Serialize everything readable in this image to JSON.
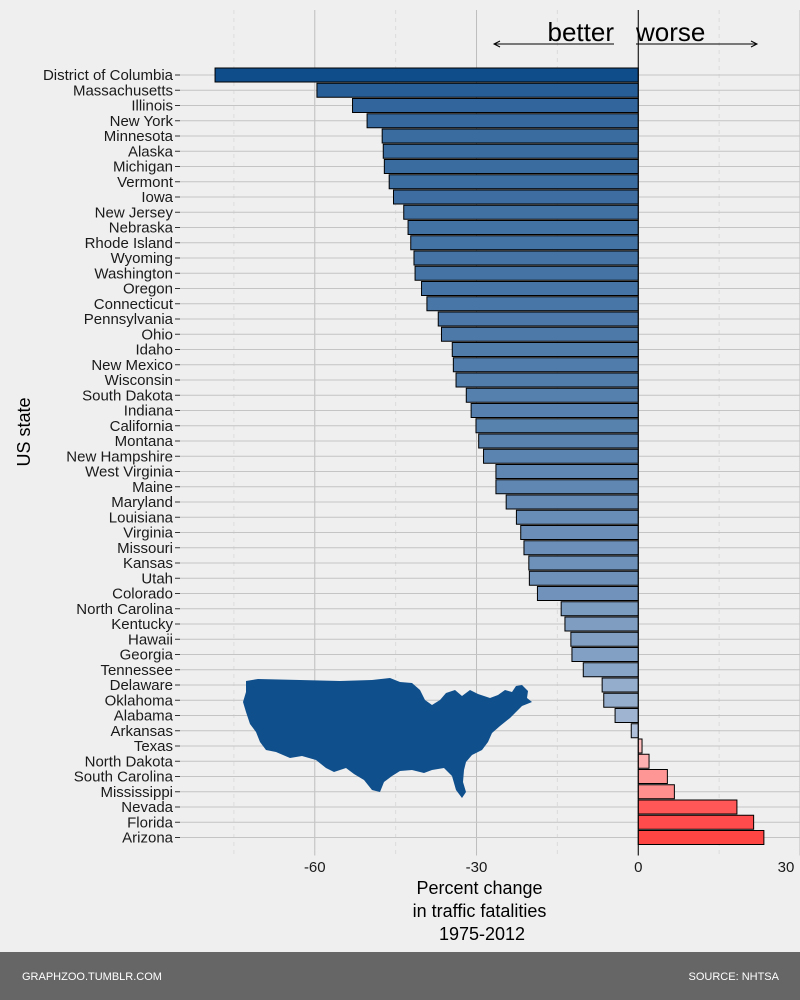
{
  "chart_data": {
    "type": "bar",
    "orientation": "horizontal",
    "ylabel": "US state",
    "xlabel_lines": [
      "Percent change",
      "in traffic fatalities",
      "1975-2012"
    ],
    "xlim": [
      -85,
      30
    ],
    "xticks": [
      -60,
      -30,
      0,
      30
    ],
    "grid": true,
    "annotations": {
      "better": "better",
      "worse": "worse"
    },
    "categories": [
      "District of Columbia",
      "Massachusetts",
      "Illinois",
      "New York",
      "Minnesota",
      "Alaska",
      "Michigan",
      "Vermont",
      "Iowa",
      "New Jersey",
      "Nebraska",
      "Rhode Island",
      "Wyoming",
      "Washington",
      "Oregon",
      "Connecticut",
      "Pennsylvania",
      "Ohio",
      "Idaho",
      "New Mexico",
      "Wisconsin",
      "South Dakota",
      "Indiana",
      "California",
      "Montana",
      "New Hampshire",
      "West Virginia",
      "Maine",
      "Maryland",
      "Louisiana",
      "Virginia",
      "Missouri",
      "Kansas",
      "Utah",
      "Colorado",
      "North Carolina",
      "Kentucky",
      "Hawaii",
      "Georgia",
      "Tennessee",
      "Delaware",
      "Oklahoma",
      "Alabama",
      "Arkansas",
      "Texas",
      "North Dakota",
      "South Carolina",
      "Mississippi",
      "Nevada",
      "Florida",
      "Arizona"
    ],
    "values": [
      -78.5,
      -59.6,
      -53,
      -50.3,
      -47.5,
      -47.3,
      -47.1,
      -46.2,
      -45.4,
      -43.5,
      -42.7,
      -42.2,
      -41.6,
      -41.4,
      -40.2,
      -39.2,
      -37.1,
      -36.5,
      -34.5,
      -34.3,
      -33.8,
      -31.9,
      -31,
      -30.1,
      -29.6,
      -28.7,
      -26.4,
      -26.4,
      -24.5,
      -22.6,
      -21.8,
      -21.2,
      -20.3,
      -20.2,
      -18.7,
      -14.3,
      -13.6,
      -12.5,
      -12.3,
      -10.2,
      -6.7,
      -6.4,
      -4.3,
      -1.3,
      0.7,
      2,
      5.4,
      6.7,
      18.3,
      21.4,
      23.3
    ],
    "colors": {
      "negative_dark": "#0f4c8a",
      "negative_light": "#c2cfe3",
      "positive_light": "#ffd0d0",
      "positive_dark": "#ff4444",
      "bar_outline": "#000000",
      "inset_map": "#0f4f8c"
    }
  },
  "footer": {
    "left": "GRAPHZOO.TUMBLR.COM",
    "right": "SOURCE: NHTSA"
  }
}
